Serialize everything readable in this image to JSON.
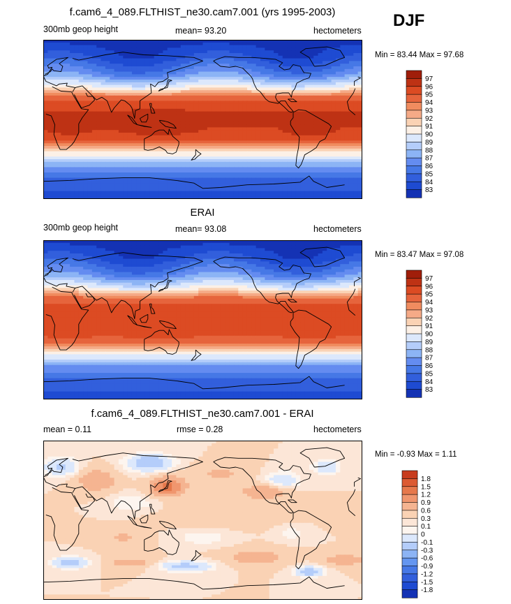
{
  "season": "DJF",
  "colors": {
    "abs_scale": [
      "#0a0a82",
      "#1432b4",
      "#1e4bd2",
      "#325fdc",
      "#4678e6",
      "#648cf0",
      "#8cb4f5",
      "#b4cdfa",
      "#dce8fc",
      "#fcf0e6",
      "#fad2b4",
      "#f5aa87",
      "#f08c5f",
      "#e6643c",
      "#dc4b23",
      "#be3214",
      "#a01e0a",
      "#8c0a00"
    ],
    "diff_scale": [
      "#0a0a82",
      "#1432b4",
      "#1e4bd2",
      "#325fdc",
      "#4678e6",
      "#6496f0",
      "#8cb4f5",
      "#b4cdfa",
      "#dce8fc",
      "#fdf5ef",
      "#fce6d7",
      "#fad2b4",
      "#f5b491",
      "#f0966e",
      "#e6784b",
      "#dc5a32",
      "#c83c1e",
      "#a01e0a",
      "#8c0a00"
    ],
    "land_outline": "#000000"
  },
  "panels": [
    {
      "title": "f.cam6_4_089.FLTHIST_ne30.cam7.001 (yrs 1995-2003)",
      "left": "300mb geop height",
      "center": "mean=  93.20",
      "right": "hectometers",
      "minmax": "Min =  83.44 Max =  97.68",
      "ticks": [
        "97",
        "96",
        "95",
        "94",
        "93",
        "92",
        "91",
        "90",
        "89",
        "88",
        "87",
        "86",
        "85",
        "84",
        "83"
      ]
    },
    {
      "title": "ERAI",
      "left": "300mb geop height",
      "center": "mean=  93.08",
      "right": "hectometers",
      "minmax": "Min =  83.47 Max =  97.08",
      "ticks": [
        "97",
        "96",
        "95",
        "94",
        "93",
        "92",
        "91",
        "90",
        "89",
        "88",
        "87",
        "86",
        "85",
        "84",
        "83"
      ]
    },
    {
      "title": "f.cam6_4_089.FLTHIST_ne30.cam7.001 - ERAI",
      "left": "mean =   0.11",
      "center": "rmse =   0.28",
      "right": "hectometers",
      "minmax": "Min =  -0.93 Max =   1.11",
      "ticks": [
        "1.8",
        "1.5",
        "1.2",
        "0.9",
        "0.6",
        "0.3",
        "0.1",
        "0",
        "-0.1",
        "-0.3",
        "-0.6",
        "-0.9",
        "-1.2",
        "-1.5",
        "-1.8"
      ]
    }
  ],
  "chart_data": [
    {
      "type": "heatmap",
      "title": "f.cam6_4_089.FLTHIST_ne30.cam7.001 (yrs 1995-2003)",
      "variable": "300mb geop height",
      "units": "hectometers",
      "mean": 93.2,
      "min": 83.44,
      "max": 97.68,
      "contour_levels": [
        83,
        84,
        85,
        86,
        87,
        88,
        89,
        90,
        91,
        92,
        93,
        94,
        95,
        96,
        97
      ],
      "lon_range": [
        0,
        360
      ],
      "lat_range": [
        -90,
        90
      ],
      "zonal_profile": {
        "lat": [
          90,
          70,
          50,
          35,
          25,
          15,
          0,
          -15,
          -25,
          -35,
          -50,
          -70,
          -90
        ],
        "value": [
          83.5,
          84.8,
          87.5,
          91.5,
          95.5,
          96.8,
          97.2,
          96.8,
          95.8,
          92.5,
          88.5,
          85.5,
          84.5
        ]
      }
    },
    {
      "type": "heatmap",
      "title": "ERAI",
      "variable": "300mb geop height",
      "units": "hectometers",
      "mean": 93.08,
      "min": 83.47,
      "max": 97.08,
      "contour_levels": [
        83,
        84,
        85,
        86,
        87,
        88,
        89,
        90,
        91,
        92,
        93,
        94,
        95,
        96,
        97
      ],
      "lon_range": [
        0,
        360
      ],
      "lat_range": [
        -90,
        90
      ],
      "zonal_profile": {
        "lat": [
          90,
          70,
          50,
          35,
          25,
          15,
          0,
          -15,
          -25,
          -35,
          -50,
          -70,
          -90
        ],
        "value": [
          83.5,
          84.8,
          87.5,
          91.3,
          95.0,
          96.3,
          96.6,
          96.3,
          95.5,
          92.3,
          88.3,
          85.5,
          84.5
        ]
      }
    },
    {
      "type": "heatmap",
      "title": "f.cam6_4_089.FLTHIST_ne30.cam7.001 - ERAI",
      "units": "hectometers",
      "mean": 0.11,
      "rmse": 0.28,
      "min": -0.93,
      "max": 1.11,
      "contour_levels": [
        -1.8,
        -1.5,
        -1.2,
        -0.9,
        -0.6,
        -0.3,
        -0.1,
        0,
        0.1,
        0.3,
        0.6,
        0.9,
        1.2,
        1.5,
        1.8
      ],
      "lon_range": [
        0,
        360
      ],
      "lat_range": [
        -90,
        90
      ]
    }
  ]
}
